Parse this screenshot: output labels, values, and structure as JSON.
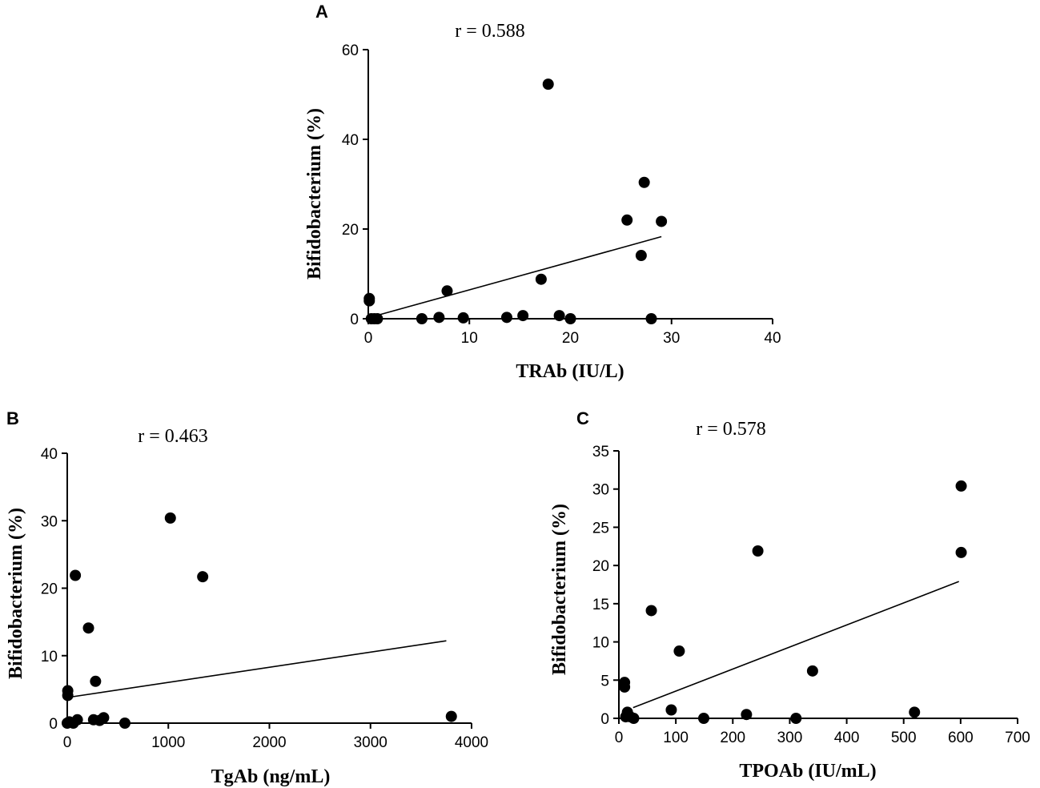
{
  "chart_data": [
    {
      "panel": "A",
      "type": "scatter",
      "annotation": "r = 0.588",
      "xlabel": "TRAb (IU/L)",
      "ylabel": "Bifidobacterium (%)",
      "xlim": [
        0,
        40
      ],
      "ylim": [
        0,
        60
      ],
      "xticks": [
        0,
        10,
        20,
        30,
        40
      ],
      "yticks": [
        0,
        20,
        40,
        60
      ],
      "points": [
        {
          "x": 0.1,
          "y": 4.5
        },
        {
          "x": 0.1,
          "y": 4.0
        },
        {
          "x": 0.3,
          "y": 0
        },
        {
          "x": 0.6,
          "y": 0
        },
        {
          "x": 0.9,
          "y": 0
        },
        {
          "x": 5.3,
          "y": 0
        },
        {
          "x": 7.0,
          "y": 0.3
        },
        {
          "x": 7.8,
          "y": 6.2
        },
        {
          "x": 9.4,
          "y": 0.2
        },
        {
          "x": 13.7,
          "y": 0.3
        },
        {
          "x": 15.3,
          "y": 0.7
        },
        {
          "x": 17.1,
          "y": 8.8
        },
        {
          "x": 17.8,
          "y": 52.3
        },
        {
          "x": 18.9,
          "y": 0.7
        },
        {
          "x": 20.0,
          "y": 0
        },
        {
          "x": 25.6,
          "y": 22.0
        },
        {
          "x": 27.0,
          "y": 14.1
        },
        {
          "x": 27.3,
          "y": 30.4
        },
        {
          "x": 28.0,
          "y": 0
        },
        {
          "x": 29.0,
          "y": 21.7
        }
      ],
      "fit_line": {
        "x": [
          0,
          29
        ],
        "y": [
          0.2,
          18.3
        ]
      }
    },
    {
      "panel": "B",
      "type": "scatter",
      "annotation": "r = 0.463",
      "xlabel": "TgAb (ng/mL)",
      "ylabel": "Bifidobacterium (%)",
      "xlim": [
        0,
        4000
      ],
      "ylim": [
        0,
        40
      ],
      "xticks": [
        0,
        1000,
        2000,
        3000,
        4000
      ],
      "yticks": [
        0,
        10,
        20,
        30,
        40
      ],
      "points": [
        {
          "x": 0,
          "y": 0
        },
        {
          "x": 5,
          "y": 4.8
        },
        {
          "x": 5,
          "y": 4.1
        },
        {
          "x": 20,
          "y": 0.2
        },
        {
          "x": 60,
          "y": 0
        },
        {
          "x": 80,
          "y": 21.9
        },
        {
          "x": 100,
          "y": 0.5
        },
        {
          "x": 210,
          "y": 14.1
        },
        {
          "x": 260,
          "y": 0.5
        },
        {
          "x": 280,
          "y": 6.2
        },
        {
          "x": 320,
          "y": 0.4
        },
        {
          "x": 360,
          "y": 0.8
        },
        {
          "x": 570,
          "y": 0
        },
        {
          "x": 1020,
          "y": 30.4
        },
        {
          "x": 1340,
          "y": 21.7
        },
        {
          "x": 3800,
          "y": 1.0
        }
      ],
      "fit_line": {
        "x": [
          0,
          3750
        ],
        "y": [
          3.8,
          12.2
        ]
      }
    },
    {
      "panel": "C",
      "type": "scatter",
      "annotation": "r = 0.578",
      "xlabel": "TPOAb (IU/mL)",
      "ylabel": "Bifidobacterium (%)",
      "xlim": [
        0,
        700
      ],
      "ylim": [
        0,
        35
      ],
      "xticks": [
        0,
        100,
        200,
        300,
        400,
        500,
        600,
        700
      ],
      "yticks": [
        0,
        5,
        10,
        15,
        20,
        25,
        30,
        35
      ],
      "points": [
        {
          "x": 10,
          "y": 4.7
        },
        {
          "x": 10,
          "y": 4.1
        },
        {
          "x": 12,
          "y": 0.2
        },
        {
          "x": 15,
          "y": 0.8
        },
        {
          "x": 20,
          "y": 0.2
        },
        {
          "x": 26,
          "y": 0
        },
        {
          "x": 57,
          "y": 14.1
        },
        {
          "x": 92,
          "y": 1.1
        },
        {
          "x": 106,
          "y": 8.8
        },
        {
          "x": 149,
          "y": 0
        },
        {
          "x": 224,
          "y": 0.5
        },
        {
          "x": 244,
          "y": 21.9
        },
        {
          "x": 311,
          "y": 0
        },
        {
          "x": 340,
          "y": 6.2
        },
        {
          "x": 519,
          "y": 0.8
        },
        {
          "x": 601,
          "y": 30.4
        },
        {
          "x": 601,
          "y": 21.7
        }
      ],
      "fit_line": {
        "x": [
          25,
          597
        ],
        "y": [
          1.4,
          17.9
        ]
      }
    }
  ]
}
